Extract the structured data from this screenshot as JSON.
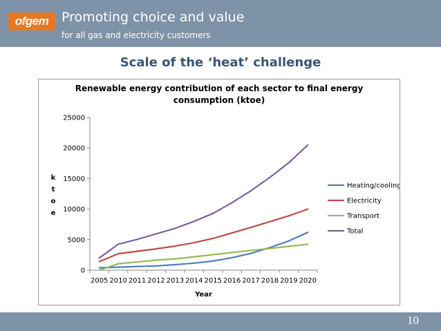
{
  "header": {
    "logo_text": "ofgem",
    "tagline_1": "Promoting choice and value",
    "tagline_2": "for all gas and electricity customers",
    "background_color": "#7f93a8",
    "logo_color": "#e87722"
  },
  "slide": {
    "title": "Scale of the ‘heat’ challenge",
    "page_number": "10"
  },
  "chart_data": {
    "type": "line",
    "title": "Renewable energy contribution of each sector to final energy consumption (ktoe)",
    "title_lines": [
      "Renewable energy contribution of each sector to final energy",
      "consumption (ktoe)"
    ],
    "xlabel": "Year",
    "ylabel": "ktoe",
    "categories": [
      "2005",
      "2010",
      "2011",
      "2012",
      "2013",
      "2014",
      "2015",
      "2016",
      "2017",
      "2018",
      "2019",
      "2020"
    ],
    "yticks": [
      0,
      5000,
      10000,
      15000,
      20000,
      25000
    ],
    "ylim": [
      0,
      25000
    ],
    "grid": false,
    "legend_position": "right",
    "series": [
      {
        "name": "Heating/cooling",
        "color": "#4a7ebb",
        "values": [
          400,
          500,
          600,
          700,
          900,
          1150,
          1500,
          2050,
          2750,
          3700,
          4800,
          6200
        ]
      },
      {
        "name": "Electricity",
        "color": "#be4b48",
        "values": [
          1400,
          2700,
          3100,
          3500,
          3950,
          4500,
          5200,
          6100,
          7000,
          7950,
          8900,
          10000
        ]
      },
      {
        "name": "Transport",
        "color": "#98b954",
        "values": [
          0,
          1050,
          1350,
          1650,
          1850,
          2200,
          2550,
          2900,
          3250,
          3550,
          3900,
          4250
        ]
      },
      {
        "name": "Total",
        "color": "#7d60a0",
        "values": [
          2000,
          4250,
          5050,
          5950,
          6850,
          8000,
          9300,
          11050,
          13000,
          15200,
          17600,
          20500
        ]
      }
    ]
  }
}
